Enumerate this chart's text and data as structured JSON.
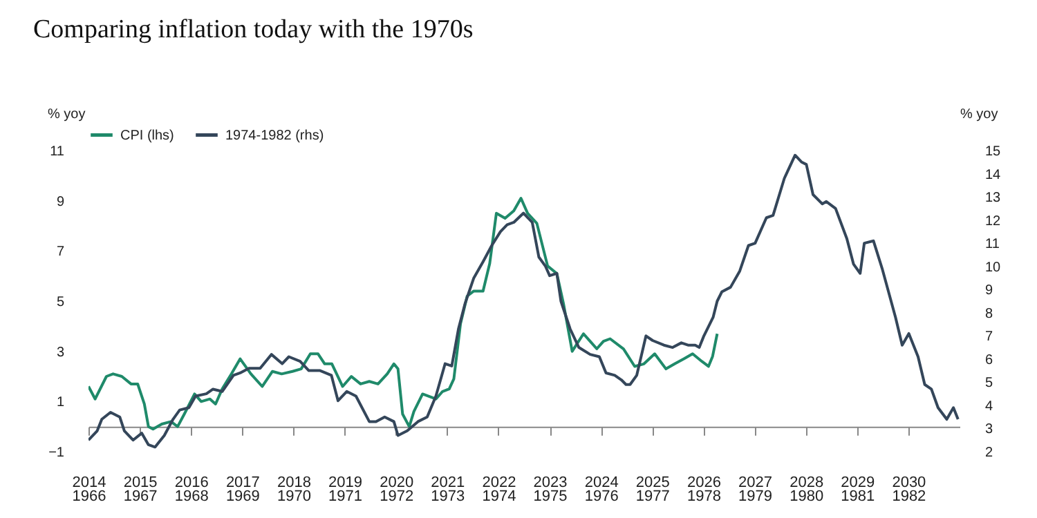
{
  "chart_data": {
    "type": "line",
    "title": "Comparing inflation today with the 1970s",
    "ylabel": "% yoy",
    "y2label": "% yoy",
    "legend": "top",
    "xlim": [
      2014,
      2031
    ],
    "xticks": [
      2014,
      2015,
      2016,
      2017,
      2018,
      2019,
      2020,
      2021,
      2022,
      2023,
      2024,
      2025,
      2026,
      2027,
      2028,
      2029,
      2030
    ],
    "x2lim": [
      1966,
      1983
    ],
    "x2ticks": [
      1966,
      1967,
      1968,
      1969,
      1970,
      1971,
      1972,
      1973,
      1974,
      1975,
      1976,
      1977,
      1978,
      1979,
      1980,
      1981,
      1982
    ],
    "ylim": [
      -1,
      11
    ],
    "yticks": [
      -1,
      1,
      3,
      5,
      7,
      9,
      11
    ],
    "y2lim": [
      2,
      15
    ],
    "y2ticks": [
      2,
      3,
      4,
      5,
      6,
      7,
      8,
      9,
      10,
      11,
      12,
      13,
      14,
      15
    ],
    "series": [
      {
        "name": "CPI (lhs)",
        "color": "#1f8a6a",
        "x": [
          2014.0,
          2014.13,
          2014.35,
          2014.48,
          2014.65,
          2014.83,
          2014.96,
          2015.09,
          2015.17,
          2015.26,
          2015.43,
          2015.61,
          2015.74,
          2015.87,
          2016.07,
          2016.2,
          2016.37,
          2016.48,
          2016.61,
          2016.79,
          2016.96,
          2017.17,
          2017.39,
          2017.59,
          2017.77,
          2017.98,
          2018.15,
          2018.33,
          2018.48,
          2018.61,
          2018.75,
          2018.96,
          2019.13,
          2019.31,
          2019.48,
          2019.65,
          2019.83,
          2019.96,
          2020.04,
          2020.13,
          2020.26,
          2020.35,
          2020.52,
          2020.78,
          2020.91,
          2021.04,
          2021.13,
          2021.26,
          2021.39,
          2021.52,
          2021.7,
          2021.83,
          2021.96,
          2022.13,
          2022.3,
          2022.44,
          2022.57,
          2022.75,
          2022.96,
          2023.14,
          2023.27,
          2023.44,
          2023.66,
          2023.79,
          2023.92,
          2024.05,
          2024.18,
          2024.44,
          2024.66,
          2024.84,
          2025.05,
          2025.27,
          2025.44,
          2025.62,
          2025.79,
          2025.97,
          2026.1,
          2026.18,
          2026.27
        ],
        "values": [
          1.6,
          1.1,
          2.0,
          2.1,
          2.0,
          1.7,
          1.7,
          0.9,
          0.0,
          -0.1,
          0.1,
          0.2,
          0.0,
          0.5,
          1.3,
          1.0,
          1.1,
          0.9,
          1.5,
          2.1,
          2.7,
          2.1,
          1.6,
          2.2,
          2.1,
          2.2,
          2.3,
          2.9,
          2.9,
          2.5,
          2.5,
          1.6,
          2.0,
          1.7,
          1.8,
          1.7,
          2.1,
          2.5,
          2.3,
          0.5,
          0.0,
          0.6,
          1.3,
          1.1,
          1.4,
          1.5,
          1.9,
          4.1,
          5.2,
          5.4,
          5.4,
          6.5,
          8.5,
          8.3,
          8.6,
          9.1,
          8.5,
          8.1,
          6.4,
          6.1,
          4.9,
          3.0,
          3.7,
          3.4,
          3.1,
          3.4,
          3.5,
          3.1,
          2.4,
          2.5,
          2.9,
          2.3,
          2.5,
          2.7,
          2.9,
          2.6,
          2.4,
          2.8,
          3.7
        ]
      },
      {
        "name": "1974-1982 (rhs)",
        "color": "#34465a",
        "axis": "y2",
        "x": [
          2014.0,
          2014.17,
          2014.26,
          2014.43,
          2014.61,
          2014.7,
          2014.87,
          2015.04,
          2015.17,
          2015.3,
          2015.48,
          2015.65,
          2015.78,
          2015.96,
          2016.09,
          2016.3,
          2016.43,
          2016.61,
          2016.83,
          2016.96,
          2017.13,
          2017.35,
          2017.57,
          2017.78,
          2017.91,
          2018.13,
          2018.3,
          2018.52,
          2018.74,
          2018.87,
          2019.04,
          2019.22,
          2019.48,
          2019.61,
          2019.78,
          2019.96,
          2020.04,
          2020.22,
          2020.43,
          2020.61,
          2020.78,
          2020.96,
          2021.09,
          2021.22,
          2021.35,
          2021.52,
          2021.7,
          2021.87,
          2022.04,
          2022.17,
          2022.3,
          2022.49,
          2022.66,
          2022.79,
          2022.92,
          2023.0,
          2023.14,
          2023.22,
          2023.4,
          2023.57,
          2023.79,
          2023.97,
          2024.1,
          2024.27,
          2024.4,
          2024.49,
          2024.57,
          2024.7,
          2024.88,
          2025.01,
          2025.23,
          2025.4,
          2025.57,
          2025.7,
          2025.84,
          2025.92,
          2026.01,
          2026.19,
          2026.27,
          2026.36,
          2026.53,
          2026.71,
          2026.88,
          2027.01,
          2027.23,
          2027.36,
          2027.58,
          2027.79,
          2027.92,
          2028.01,
          2028.14,
          2028.32,
          2028.4,
          2028.58,
          2028.8,
          2028.93,
          2029.06,
          2029.14,
          2029.32,
          2029.49,
          2029.75,
          2029.88,
          2030.01,
          2030.19,
          2030.32,
          2030.45,
          2030.58,
          2030.75,
          2030.88,
          2030.97
        ],
        "values": [
          2.5,
          2.9,
          3.4,
          3.7,
          3.5,
          2.9,
          2.5,
          2.8,
          2.3,
          2.2,
          2.7,
          3.4,
          3.8,
          3.9,
          4.4,
          4.5,
          4.7,
          4.6,
          5.3,
          5.4,
          5.6,
          5.6,
          6.2,
          5.8,
          6.1,
          5.9,
          5.5,
          5.5,
          5.3,
          4.2,
          4.6,
          4.4,
          3.3,
          3.3,
          3.5,
          3.3,
          2.7,
          2.9,
          3.3,
          3.5,
          4.4,
          5.8,
          5.7,
          7.3,
          8.4,
          9.5,
          10.2,
          10.9,
          11.5,
          11.8,
          11.9,
          12.3,
          11.9,
          10.4,
          10.0,
          9.6,
          9.7,
          8.5,
          7.3,
          6.5,
          6.2,
          6.1,
          5.4,
          5.3,
          5.1,
          4.9,
          4.9,
          5.3,
          7.0,
          6.8,
          6.6,
          6.5,
          6.7,
          6.6,
          6.6,
          6.5,
          7.0,
          7.8,
          8.5,
          8.9,
          9.1,
          9.8,
          10.9,
          11.0,
          12.1,
          12.2,
          13.8,
          14.8,
          14.5,
          14.4,
          13.1,
          12.7,
          12.8,
          12.5,
          11.2,
          10.1,
          9.7,
          11.0,
          11.1,
          9.9,
          7.8,
          6.6,
          7.1,
          6.1,
          4.9,
          4.7,
          3.9,
          3.4,
          3.9,
          3.4
        ]
      }
    ]
  }
}
